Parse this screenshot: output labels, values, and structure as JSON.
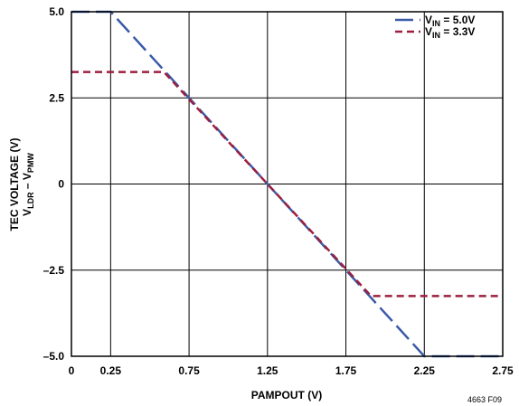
{
  "chart_data": {
    "type": "line",
    "xlabel": "PAMPOUT (V)",
    "ylabel_line1": "TEC VOLTAGE (V)",
    "ylabel_line2": {
      "main1": "V",
      "sub1": "LDR",
      "mid": " – V",
      "sub2": "PMW"
    },
    "x_ticks": [
      "0",
      "0.25",
      "0.75",
      "1.25",
      "1.75",
      "2.25",
      "2.75"
    ],
    "x_tick_values": [
      0,
      0.25,
      0.75,
      1.25,
      1.75,
      2.25,
      2.75
    ],
    "y_ticks": [
      "5.0",
      "2.5",
      "0",
      "–2.5",
      "–5.0"
    ],
    "y_tick_values": [
      5.0,
      2.5,
      0,
      -2.5,
      -5.0
    ],
    "xlim": [
      0,
      2.75
    ],
    "ylim": [
      -5.0,
      5.0
    ],
    "grid": true,
    "legend_position": "top-right",
    "series": [
      {
        "legend_main": "V",
        "legend_sub": "IN",
        "legend_rest": " = 5.0V",
        "color": "#3a5aa8",
        "style": "long-dash",
        "x": [
          0,
          0.25,
          2.25,
          2.75
        ],
        "y": [
          5.0,
          5.0,
          -5.0,
          -5.0
        ]
      },
      {
        "legend_main": "V",
        "legend_sub": "IN",
        "legend_rest": " = 3.3V",
        "color": "#9c1f3f",
        "style": "short-dash",
        "x": [
          0,
          0.59,
          1.91,
          2.75
        ],
        "y": [
          3.25,
          3.25,
          -3.25,
          -3.25
        ]
      }
    ]
  },
  "figure_id": "4663 F09"
}
